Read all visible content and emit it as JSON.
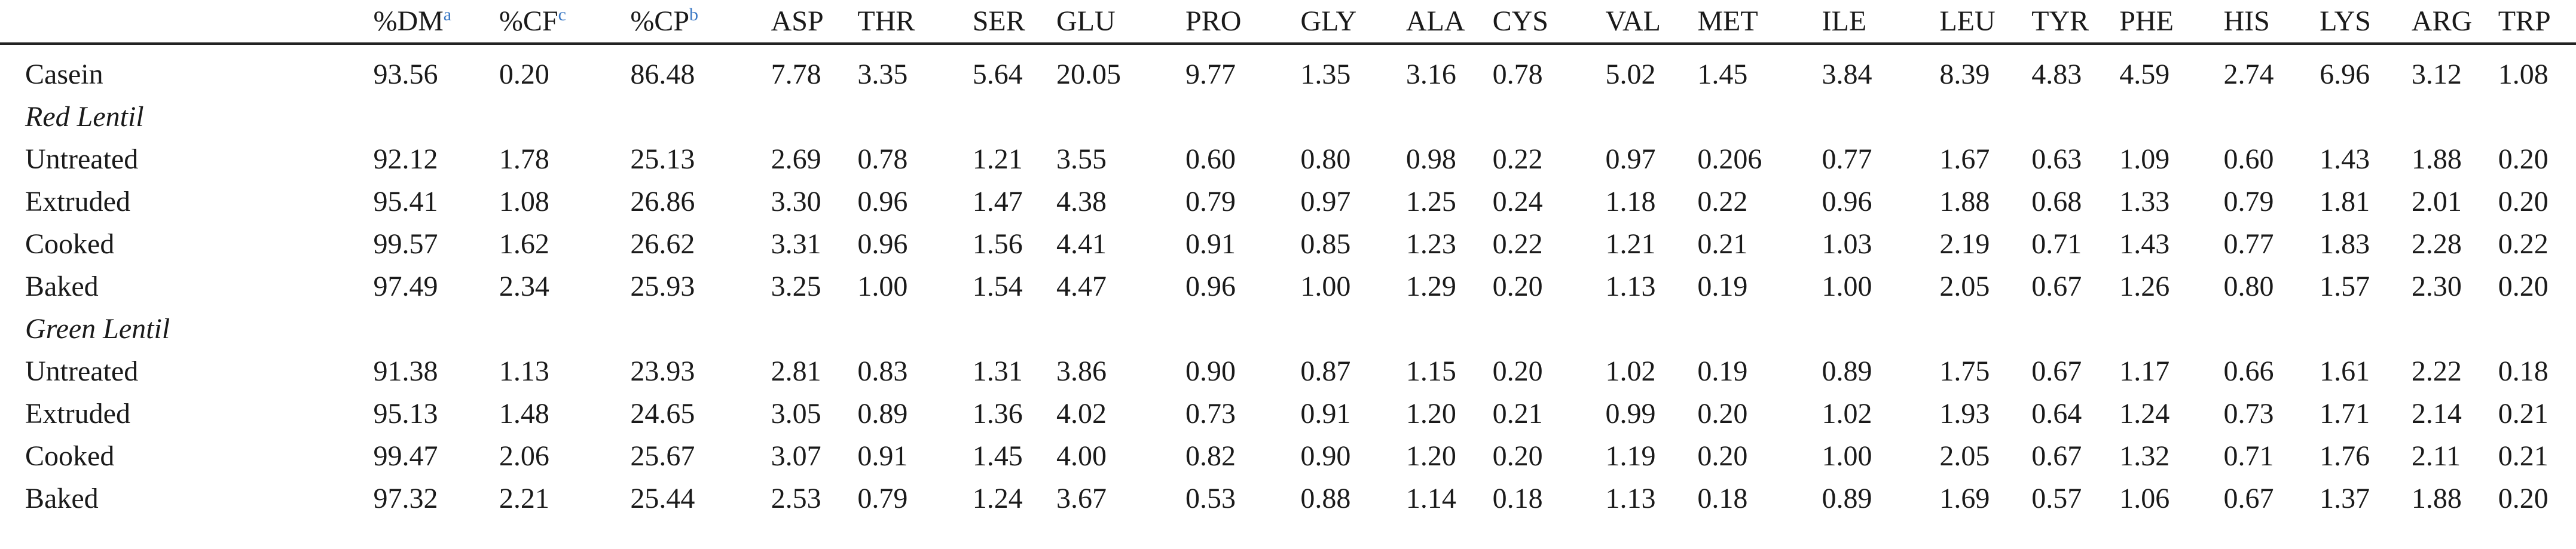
{
  "table": {
    "columns": [
      {
        "label": "%DM",
        "footnote": "a"
      },
      {
        "label": "%CF",
        "footnote": "c"
      },
      {
        "label": "%CP",
        "footnote": "b"
      },
      {
        "label": "ASP",
        "footnote": ""
      },
      {
        "label": "THR",
        "footnote": ""
      },
      {
        "label": "SER",
        "footnote": ""
      },
      {
        "label": "GLU",
        "footnote": ""
      },
      {
        "label": "PRO",
        "footnote": ""
      },
      {
        "label": "GLY",
        "footnote": ""
      },
      {
        "label": "ALA",
        "footnote": ""
      },
      {
        "label": "CYS",
        "footnote": ""
      },
      {
        "label": "VAL",
        "footnote": ""
      },
      {
        "label": "MET",
        "footnote": ""
      },
      {
        "label": "ILE",
        "footnote": ""
      },
      {
        "label": "LEU",
        "footnote": ""
      },
      {
        "label": "TYR",
        "footnote": ""
      },
      {
        "label": "PHE",
        "footnote": ""
      },
      {
        "label": "HIS",
        "footnote": ""
      },
      {
        "label": "LYS",
        "footnote": ""
      },
      {
        "label": "ARG",
        "footnote": ""
      },
      {
        "label": "TRP",
        "footnote": ""
      }
    ],
    "rows": [
      {
        "type": "data",
        "label": "Casein",
        "values": [
          "93.56",
          "0.20",
          "86.48",
          "7.78",
          "3.35",
          "5.64",
          "20.05",
          "9.77",
          "1.35",
          "3.16",
          "0.78",
          "5.02",
          "1.45",
          "3.84",
          "8.39",
          "4.83",
          "4.59",
          "2.74",
          "6.96",
          "3.12",
          "1.08"
        ]
      },
      {
        "type": "group",
        "label": "Red Lentil"
      },
      {
        "type": "data",
        "label": "Untreated",
        "values": [
          "92.12",
          "1.78",
          "25.13",
          "2.69",
          "0.78",
          "1.21",
          "3.55",
          "0.60",
          "0.80",
          "0.98",
          "0.22",
          "0.97",
          "0.206",
          "0.77",
          "1.67",
          "0.63",
          "1.09",
          "0.60",
          "1.43",
          "1.88",
          "0.20"
        ]
      },
      {
        "type": "data",
        "label": "Extruded",
        "values": [
          "95.41",
          "1.08",
          "26.86",
          "3.30",
          "0.96",
          "1.47",
          "4.38",
          "0.79",
          "0.97",
          "1.25",
          "0.24",
          "1.18",
          "0.22",
          "0.96",
          "1.88",
          "0.68",
          "1.33",
          "0.79",
          "1.81",
          "2.01",
          "0.20"
        ]
      },
      {
        "type": "data",
        "label": "Cooked",
        "values": [
          "99.57",
          "1.62",
          "26.62",
          "3.31",
          "0.96",
          "1.56",
          "4.41",
          "0.91",
          "0.85",
          "1.23",
          "0.22",
          "1.21",
          "0.21",
          "1.03",
          "2.19",
          "0.71",
          "1.43",
          "0.77",
          "1.83",
          "2.28",
          "0.22"
        ]
      },
      {
        "type": "data",
        "label": "Baked",
        "values": [
          "97.49",
          "2.34",
          "25.93",
          "3.25",
          "1.00",
          "1.54",
          "4.47",
          "0.96",
          "1.00",
          "1.29",
          "0.20",
          "1.13",
          "0.19",
          "1.00",
          "2.05",
          "0.67",
          "1.26",
          "0.80",
          "1.57",
          "2.30",
          "0.20"
        ]
      },
      {
        "type": "group",
        "label": "Green Lentil"
      },
      {
        "type": "data",
        "label": "Untreated",
        "values": [
          "91.38",
          "1.13",
          "23.93",
          "2.81",
          "0.83",
          "1.31",
          "3.86",
          "0.90",
          "0.87",
          "1.15",
          "0.20",
          "1.02",
          "0.19",
          "0.89",
          "1.75",
          "0.67",
          "1.17",
          "0.66",
          "1.61",
          "2.22",
          "0.18"
        ]
      },
      {
        "type": "data",
        "label": "Extruded",
        "values": [
          "95.13",
          "1.48",
          "24.65",
          "3.05",
          "0.89",
          "1.36",
          "4.02",
          "0.73",
          "0.91",
          "1.20",
          "0.21",
          "0.99",
          "0.20",
          "1.02",
          "1.93",
          "0.64",
          "1.24",
          "0.73",
          "1.71",
          "2.14",
          "0.21"
        ]
      },
      {
        "type": "data",
        "label": "Cooked",
        "values": [
          "99.47",
          "2.06",
          "25.67",
          "3.07",
          "0.91",
          "1.45",
          "4.00",
          "0.82",
          "0.90",
          "1.20",
          "0.20",
          "1.19",
          "0.20",
          "1.00",
          "2.05",
          "0.67",
          "1.32",
          "0.71",
          "1.76",
          "2.11",
          "0.21"
        ]
      },
      {
        "type": "data",
        "label": "Baked",
        "values": [
          "97.32",
          "2.21",
          "25.44",
          "2.53",
          "0.79",
          "1.24",
          "3.67",
          "0.53",
          "0.88",
          "1.14",
          "0.18",
          "1.13",
          "0.18",
          "0.89",
          "1.69",
          "0.57",
          "1.06",
          "0.67",
          "1.37",
          "1.88",
          "0.20"
        ]
      }
    ]
  }
}
